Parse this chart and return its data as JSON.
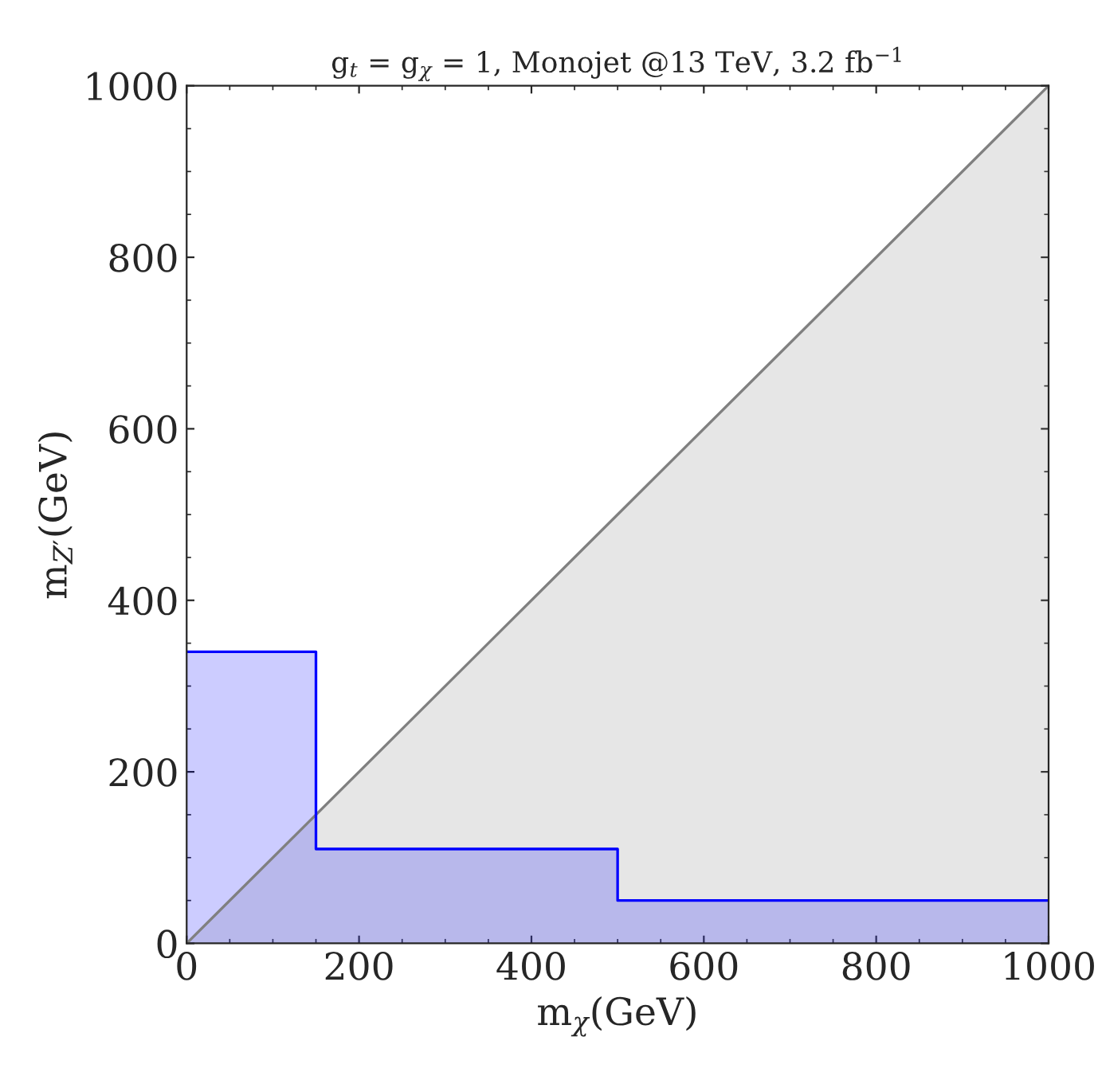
{
  "chart_data": {
    "type": "area",
    "title": "g$_{t}$ = g$_{χ}$ = 1, Monojet @13 TeV, 3.2 fb$^{−1}$",
    "xlabel": "m$_{χ}$(GeV)",
    "ylabel": "m$_{Z′}$(GeV)",
    "series": [
      {
        "color": "#808080",
        "x": [
          0,
          1000
        ],
        "values": [
          0,
          1000
        ]
      },
      {
        "color": "#0000ff",
        "x": [
          0,
          150,
          150,
          500,
          500,
          1000
        ],
        "values": [
          340,
          340,
          110,
          110,
          50,
          50
        ]
      }
    ],
    "xlim": [
      0,
      1000
    ],
    "ylim": [
      0,
      1000
    ],
    "xticks": [
      0,
      200,
      400,
      600,
      800,
      1000
    ],
    "yticks": [
      0,
      200,
      400,
      600,
      800,
      1000
    ],
    "grid": false,
    "legend": false
  }
}
